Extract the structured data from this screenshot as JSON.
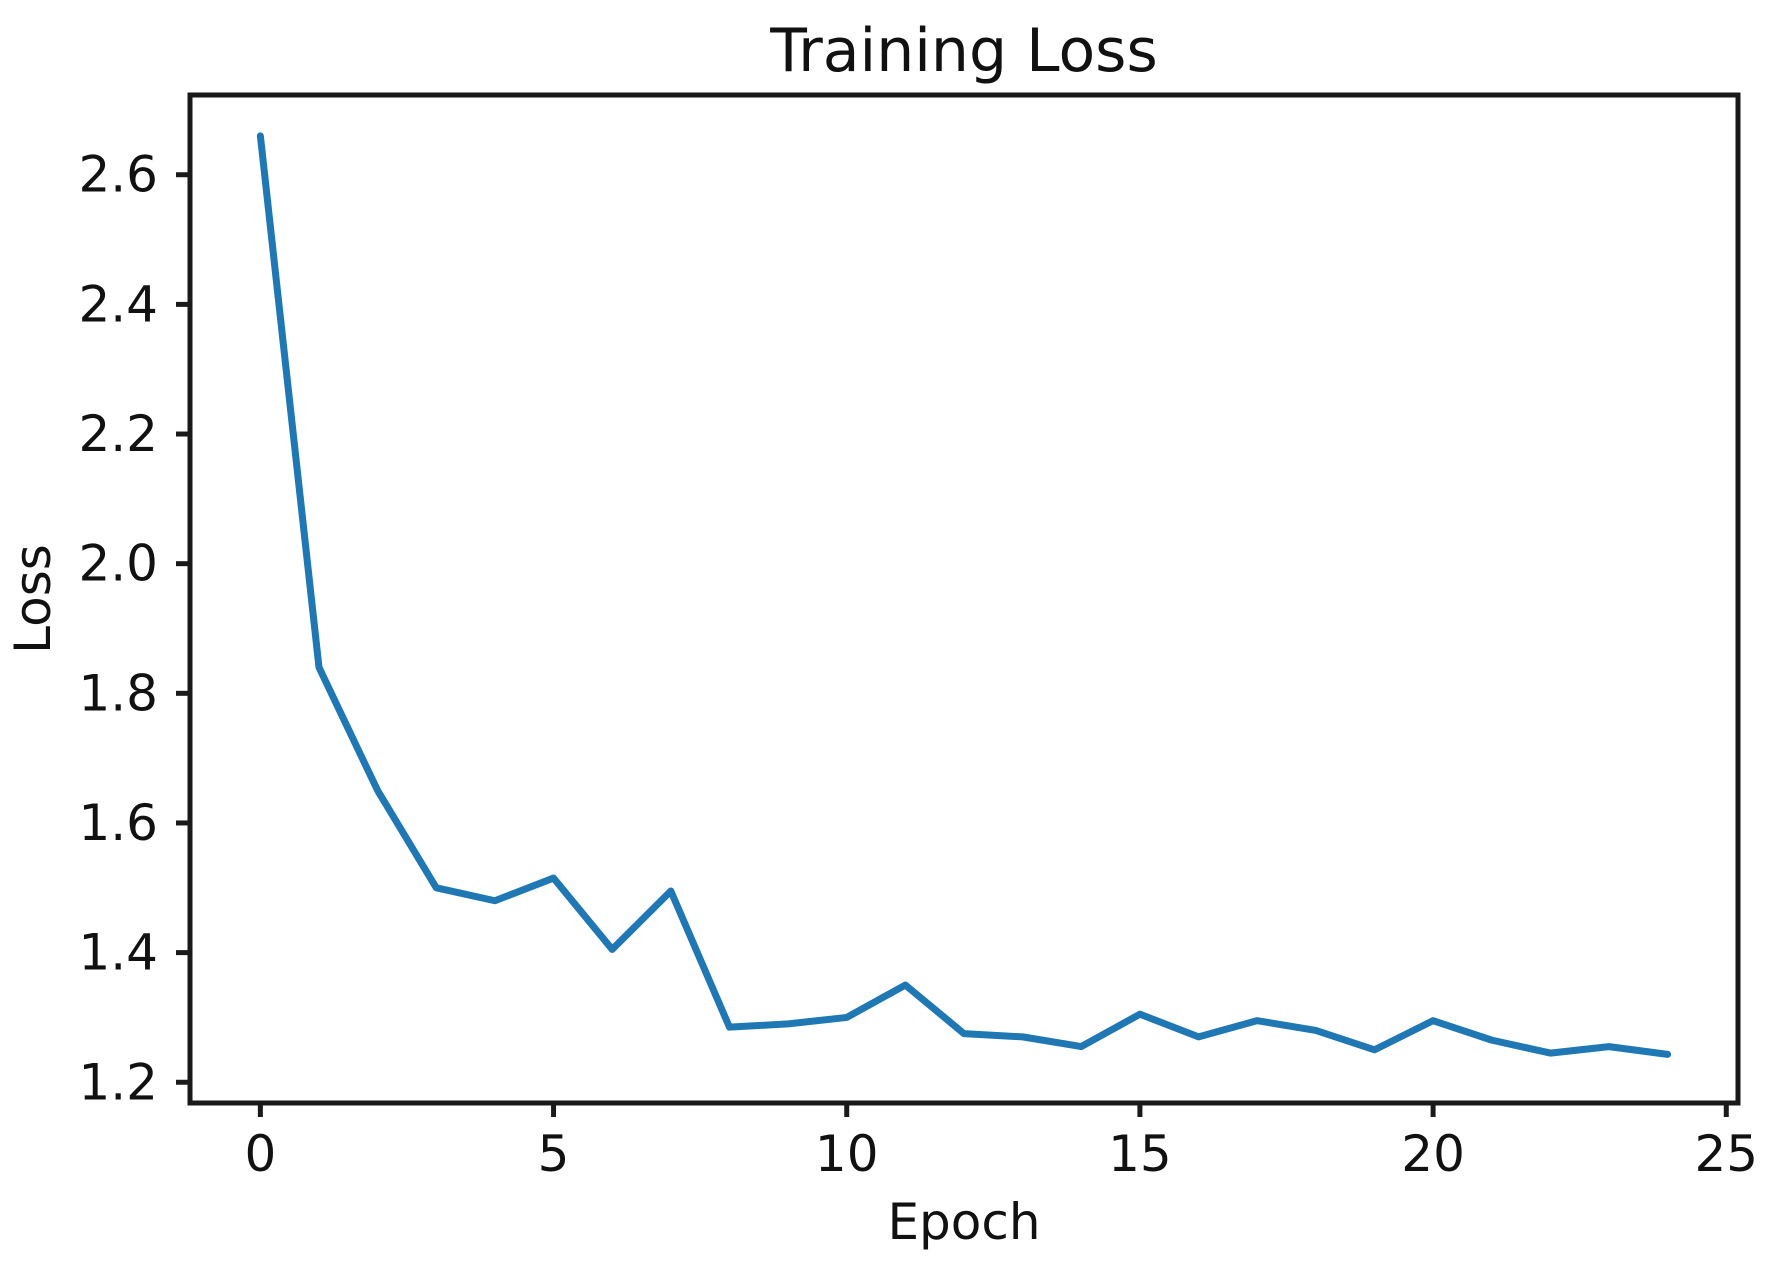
{
  "chart_data": {
    "type": "line",
    "title": "Training Loss",
    "xlabel": "Epoch",
    "ylabel": "Loss",
    "x": [
      0,
      1,
      2,
      3,
      4,
      5,
      6,
      7,
      8,
      9,
      10,
      11,
      12,
      13,
      14,
      15,
      16,
      17,
      18,
      19,
      20,
      21,
      22,
      23,
      24
    ],
    "series": [
      {
        "name": "training-loss",
        "values": [
          2.66,
          1.84,
          1.65,
          1.5,
          1.48,
          1.515,
          1.405,
          1.495,
          1.285,
          1.29,
          1.3,
          1.35,
          1.275,
          1.27,
          1.255,
          1.305,
          1.27,
          1.295,
          1.28,
          1.25,
          1.295,
          1.265,
          1.245,
          1.255,
          1.243
        ]
      }
    ],
    "xticks": [
      0,
      5,
      10,
      15,
      20,
      25
    ],
    "yticks": [
      1.2,
      1.4,
      1.6,
      1.8,
      2.0,
      2.2,
      2.4,
      2.6
    ],
    "xlim": [
      -1.2,
      25.2
    ],
    "ylim": [
      1.168,
      2.723
    ],
    "grid": false,
    "legend": "none",
    "line_color": "#1f77b4",
    "axis_color": "#1a1a1a",
    "background_color": "#ffffff"
  }
}
